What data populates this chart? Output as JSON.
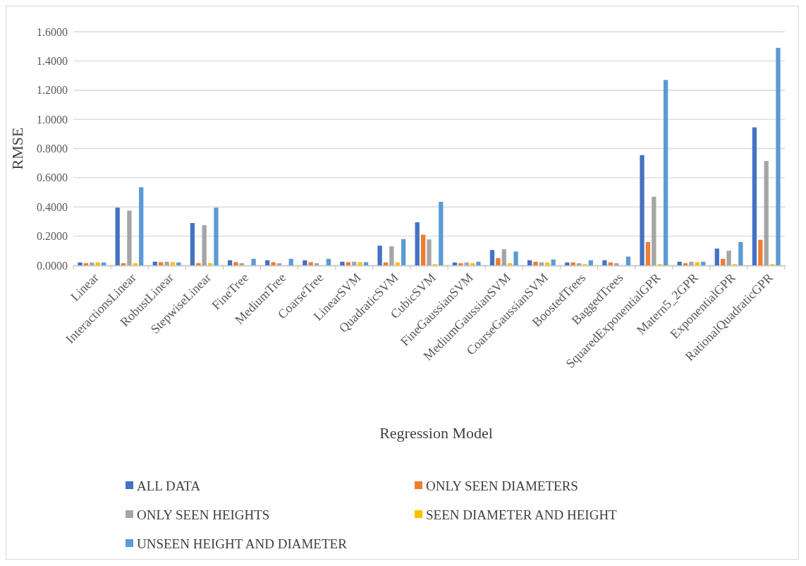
{
  "chart_data": {
    "type": "bar",
    "xlabel": "Regression Model",
    "ylabel": "RMSE",
    "categories": [
      "Linear",
      "InteractionsLinear",
      "RobustLinear",
      "StepwiseLinear",
      "FineTree",
      "MediumTree",
      "CoarseTree",
      "LinearSVM",
      "QuadraticSVM",
      "CubicSVM",
      "FineGaussianSVM",
      "MediumGaussianSVM",
      "CoarseGaussianSVM",
      "BoostedTrees",
      "BaggedTrees",
      "SquaredExponentialGPR",
      "Matern5_2GPR",
      "ExponentialGPR",
      "RationalQuadraticGPR"
    ],
    "series": [
      {
        "name": "ALL DATA",
        "color": "#4472c4",
        "values": [
          0.02,
          0.395,
          0.025,
          0.29,
          0.035,
          0.035,
          0.035,
          0.025,
          0.135,
          0.295,
          0.02,
          0.105,
          0.035,
          0.02,
          0.035,
          0.755,
          0.025,
          0.115,
          0.945
        ]
      },
      {
        "name": "ONLY SEEN DIAMETERS",
        "color": "#ed7d31",
        "values": [
          0.015,
          0.015,
          0.022,
          0.015,
          0.022,
          0.022,
          0.022,
          0.022,
          0.02,
          0.21,
          0.015,
          0.05,
          0.025,
          0.02,
          0.02,
          0.16,
          0.015,
          0.045,
          0.175
        ]
      },
      {
        "name": "ONLY SEEN HEIGHTS",
        "color": "#a5a5a5",
        "values": [
          0.02,
          0.375,
          0.025,
          0.275,
          0.015,
          0.015,
          0.015,
          0.025,
          0.13,
          0.178,
          0.02,
          0.11,
          0.02,
          0.015,
          0.015,
          0.47,
          0.025,
          0.1,
          0.715
        ]
      },
      {
        "name": "SEEN DIAMETER AND HEIGHT",
        "color": "#ffc000",
        "values": [
          0.02,
          0.015,
          0.022,
          0.015,
          null,
          null,
          null,
          0.022,
          0.02,
          0.008,
          0.015,
          0.015,
          0.02,
          0.008,
          null,
          0.008,
          0.022,
          0.008,
          0.008
        ]
      },
      {
        "name": "UNSEEN HEIGHT AND DIAMETER",
        "color": "#5b9bd5",
        "values": [
          0.02,
          0.535,
          0.02,
          0.395,
          0.045,
          0.045,
          0.045,
          0.022,
          0.18,
          0.435,
          0.025,
          0.095,
          0.04,
          0.035,
          0.06,
          1.27,
          0.025,
          0.16,
          1.49
        ]
      }
    ],
    "ylim": [
      0,
      1.6
    ],
    "yticks": [
      {
        "value": 0,
        "label": "0.0000"
      },
      {
        "value": 0.2,
        "label": "0.2000"
      },
      {
        "value": 0.4,
        "label": "0.4000"
      },
      {
        "value": 0.6,
        "label": "0.6000"
      },
      {
        "value": 0.8,
        "label": "0.8000"
      },
      {
        "value": 1,
        "label": "1.0000"
      },
      {
        "value": 1.2,
        "label": "1.2000"
      },
      {
        "value": 1.4,
        "label": "1.4000"
      },
      {
        "value": 1.6,
        "label": "1.6000"
      }
    ],
    "grid": "y",
    "legend": "bottom"
  }
}
